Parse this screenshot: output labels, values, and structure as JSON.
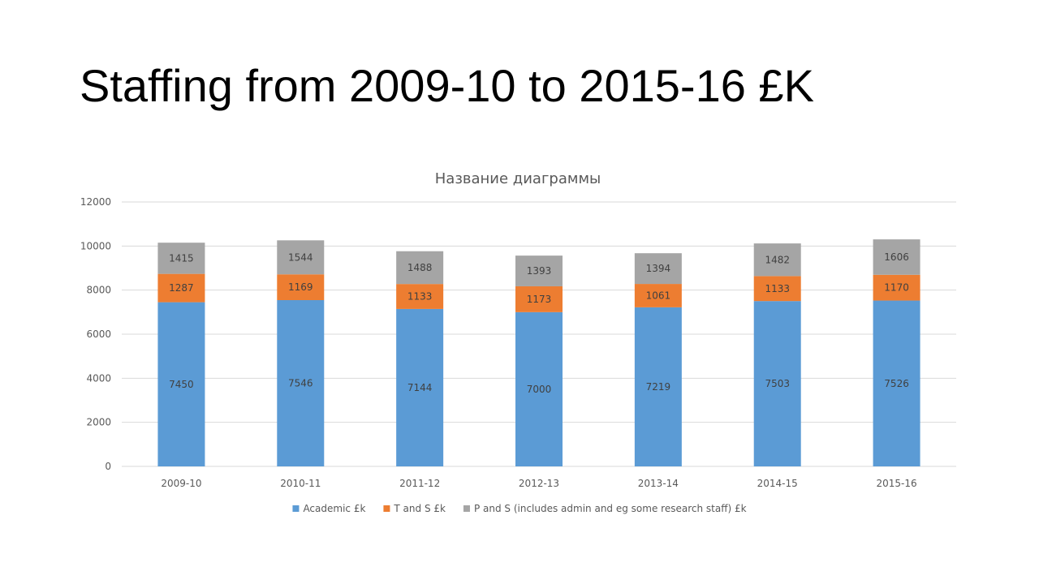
{
  "slide": {
    "title": "Staffing from 2009-10 to 2015-16 £K"
  },
  "chart_data": {
    "type": "bar",
    "stacked": true,
    "title": "Название диаграммы",
    "xlabel": "",
    "ylabel": "",
    "categories": [
      "2009-10",
      "2010-11",
      "2011-12",
      "2012-13",
      "2013-14",
      "2014-15",
      "2015-16"
    ],
    "series": [
      {
        "name": "Academic £k",
        "color": "#5b9bd5",
        "values": [
          7450,
          7546,
          7144,
          7000,
          7219,
          7503,
          7526
        ]
      },
      {
        "name": "T and S £k",
        "color": "#ed7d31",
        "values": [
          1287,
          1169,
          1133,
          1173,
          1061,
          1133,
          1170
        ]
      },
      {
        "name": "P and S (includes admin and eg some research staff) £k",
        "color": "#a5a5a5",
        "values": [
          1415,
          1544,
          1488,
          1393,
          1394,
          1482,
          1606
        ]
      }
    ],
    "ylim": [
      0,
      12000
    ],
    "yticks": [
      0,
      2000,
      4000,
      6000,
      8000,
      10000,
      12000
    ],
    "grid": true,
    "legend_position": "bottom",
    "data_labels": true
  }
}
